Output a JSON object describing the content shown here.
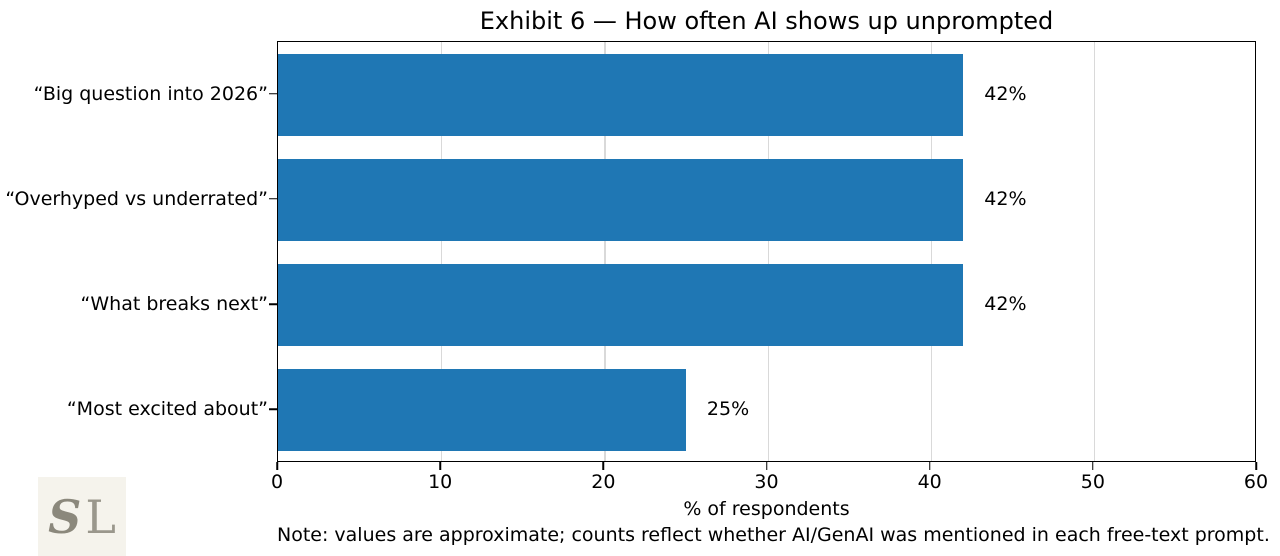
{
  "title": "Exhibit 6 — How often AI shows up unprompted",
  "chart_data": {
    "type": "bar",
    "orientation": "horizontal",
    "title": "Exhibit 6 — How often AI shows up unprompted",
    "categories": [
      "“Big question into 2026”",
      "“Overhyped vs underrated”",
      "“What breaks next”",
      "“Most excited about”"
    ],
    "values": [
      42,
      42,
      42,
      25
    ],
    "value_labels": [
      "42%",
      "42%",
      "42%",
      "25%"
    ],
    "xlabel": "% of respondents",
    "xlim": [
      0,
      60
    ],
    "xticks": [
      0,
      10,
      20,
      30,
      40,
      50,
      60
    ],
    "grid": "vertical-light",
    "legend": "none",
    "bar_color": "#1f77b4",
    "gridline_color": "#d9d9d9",
    "spine_color": "#000000"
  },
  "note": "Note: values are approximate; counts reflect whether AI/GenAI was mentioned in each free-text prompt.",
  "logo": {
    "letter_s": "S",
    "letter_l": "L",
    "background": "#f5f3ec",
    "text_color": "#8b887c"
  }
}
